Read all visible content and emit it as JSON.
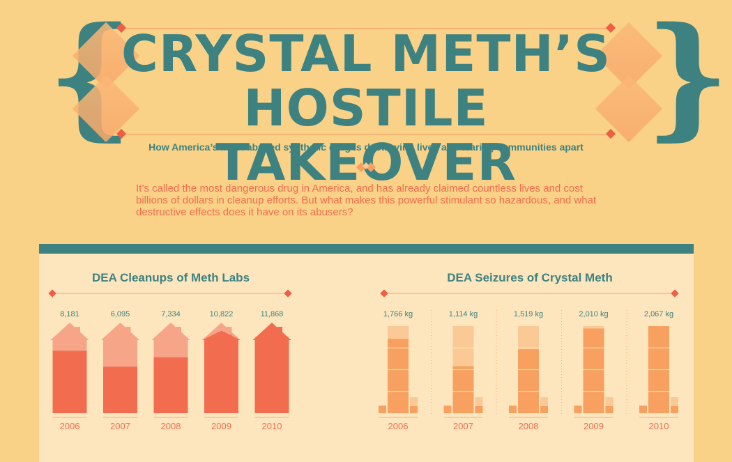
{
  "header": {
    "title_line1": "CRYSTAL METH’S",
    "title_line2": "HOSTILE TAKEOVER",
    "subtitle": "How America’s most abused synthetic drug is destroying lives and tearing communities apart",
    "intro": "It’s called the most dangerous drug in America, and has already claimed countless lives and cost billions of dollars in cleanup efforts. But what makes this powerful stimulant so hazardous, and what destructive effects does it have on its abusers?"
  },
  "colors": {
    "teal": "#3d8280",
    "coral": "#f26d4f",
    "light_coral": "#f7a589",
    "orange": "#f7a05f",
    "light_orange": "#fbc995"
  },
  "chart_data": [
    {
      "type": "bar",
      "title": "DEA Cleanups of Meth Labs",
      "categories": [
        "2006",
        "2007",
        "2008",
        "2009",
        "2010"
      ],
      "values": [
        8181,
        6095,
        7334,
        10822,
        11868
      ],
      "value_labels": [
        "8,181",
        "6,095",
        "7,334",
        "10,822",
        "11,868"
      ],
      "ylim": [
        0,
        11868
      ]
    },
    {
      "type": "bar",
      "title": "DEA Seizures of Crystal Meth",
      "categories": [
        "2006",
        "2007",
        "2008",
        "2009",
        "2010"
      ],
      "values": [
        1766,
        1114,
        1519,
        2010,
        2067
      ],
      "value_labels": [
        "1,766 kg",
        "1,114 kg",
        "1,519 kg",
        "2,010 kg",
        "2,067 kg"
      ],
      "ylim": [
        0,
        2067
      ]
    }
  ]
}
